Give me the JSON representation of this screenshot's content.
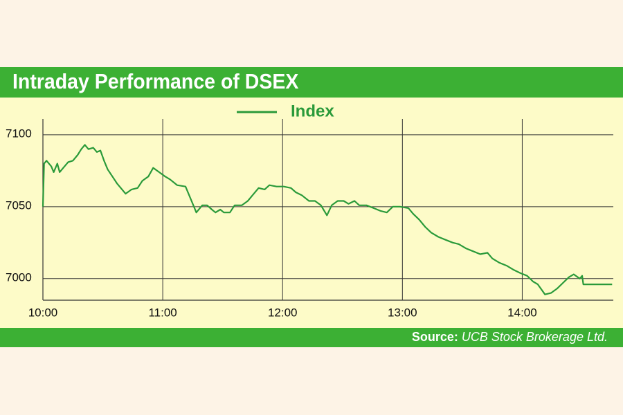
{
  "chart_data": {
    "type": "line",
    "title": "Intraday Performance of DSEX",
    "source_label": "Source:",
    "source": "UCB Stock Brokerage Ltd.",
    "x": [
      10.0,
      10.01,
      10.03,
      10.07,
      10.09,
      10.12,
      10.14,
      10.17,
      10.21,
      10.25,
      10.29,
      10.32,
      10.35,
      10.38,
      10.42,
      10.45,
      10.48,
      10.51,
      10.54,
      10.58,
      10.62,
      10.66,
      10.69,
      10.74,
      10.79,
      10.83,
      10.88,
      10.92,
      10.97,
      11.02,
      11.06,
      11.12,
      11.19,
      11.24,
      11.28,
      11.33,
      11.37,
      11.41,
      11.44,
      11.48,
      11.51,
      11.56,
      11.6,
      11.66,
      11.71,
      11.75,
      11.8,
      11.85,
      11.89,
      11.95,
      12.01,
      12.07,
      12.11,
      12.16,
      12.22,
      12.27,
      12.32,
      12.37,
      12.41,
      12.46,
      12.51,
      12.55,
      12.6,
      12.64,
      12.7,
      12.76,
      12.82,
      12.87,
      12.92,
      12.98,
      13.05,
      13.09,
      13.14,
      13.19,
      13.24,
      13.3,
      13.36,
      13.42,
      13.47,
      13.53,
      13.59,
      13.65,
      13.71,
      13.75,
      13.81,
      13.87,
      13.93,
      13.98,
      14.04,
      14.09,
      14.13,
      14.19,
      14.24,
      14.29,
      14.34,
      14.39,
      14.43,
      14.48,
      14.5,
      14.51,
      14.75
    ],
    "series": [
      {
        "name": "Index",
        "color": "#2a9a3a",
        "values": [
          7050,
          7080,
          7082,
          7078,
          7074,
          7080,
          7074,
          7077,
          7081,
          7082,
          7086,
          7090,
          7093,
          7090,
          7091,
          7088,
          7089,
          7082,
          7076,
          7071,
          7066,
          7062,
          7059,
          7062,
          7063,
          7068,
          7071,
          7077,
          7074,
          7071,
          7069,
          7065,
          7064,
          7054,
          7046,
          7051,
          7051,
          7048,
          7046,
          7048,
          7046,
          7046,
          7051,
          7051,
          7054,
          7058,
          7063,
          7062,
          7065,
          7064,
          7064,
          7063,
          7060,
          7058,
          7054,
          7054,
          7051,
          7044,
          7051,
          7054,
          7054,
          7052,
          7054,
          7051,
          7051,
          7049,
          7047,
          7046,
          7050,
          7050,
          7049,
          7045,
          7041,
          7036,
          7032,
          7029,
          7027,
          7025,
          7024,
          7021,
          7019,
          7017,
          7018,
          7014,
          7011,
          7009,
          7006,
          7004,
          7002,
          6998,
          6996,
          6989,
          6990,
          6993,
          6997,
          7001,
          7003,
          7000,
          7002,
          6996,
          6996
        ]
      }
    ],
    "xlim": [
      10,
      14.76
    ],
    "xticks": [
      {
        "value": 10,
        "label": "10:00"
      },
      {
        "value": 11,
        "label": "11:00"
      },
      {
        "value": 12,
        "label": "12:00"
      },
      {
        "value": 13,
        "label": "13:00"
      },
      {
        "value": 14,
        "label": "14:00"
      }
    ],
    "ylim": [
      6985,
      7111
    ],
    "yticks": [
      7000,
      7050,
      7100
    ],
    "grid": true
  }
}
